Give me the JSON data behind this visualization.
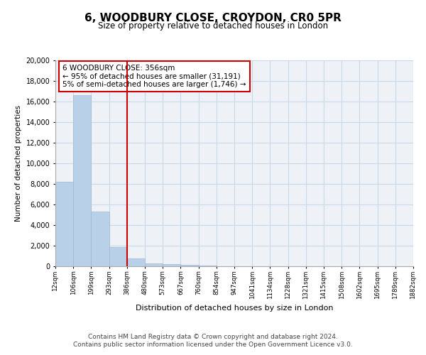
{
  "title": "6, WOODBURY CLOSE, CROYDON, CR0 5PR",
  "subtitle": "Size of property relative to detached houses in London",
  "xlabel": "Distribution of detached houses by size in London",
  "ylabel": "Number of detached properties",
  "bar_values": [
    8200,
    16600,
    5300,
    1850,
    750,
    300,
    200,
    150,
    50,
    0,
    0,
    0,
    0,
    0,
    0,
    0,
    0,
    0,
    0,
    0
  ],
  "bar_labels": [
    "12sqm",
    "106sqm",
    "199sqm",
    "293sqm",
    "386sqm",
    "480sqm",
    "573sqm",
    "667sqm",
    "760sqm",
    "854sqm",
    "947sqm",
    "1041sqm",
    "1134sqm",
    "1228sqm",
    "1321sqm",
    "1415sqm",
    "1508sqm",
    "1602sqm",
    "1695sqm",
    "1789sqm",
    "1882sqm"
  ],
  "bar_color": "#b8d0e8",
  "bar_edge_color": "#a0b8d0",
  "vline_color": "#cc0000",
  "annotation_line1": "6 WOODBURY CLOSE: 356sqm",
  "annotation_line2": "← 95% of detached houses are smaller (31,191)",
  "annotation_line3": "5% of semi-detached houses are larger (1,746) →",
  "annotation_box_facecolor": "white",
  "annotation_box_edgecolor": "#cc0000",
  "ylim": [
    0,
    20000
  ],
  "yticks": [
    0,
    2000,
    4000,
    6000,
    8000,
    10000,
    12000,
    14000,
    16000,
    18000,
    20000
  ],
  "footer_line1": "Contains HM Land Registry data © Crown copyright and database right 2024.",
  "footer_line2": "Contains public sector information licensed under the Open Government Licence v3.0.",
  "bg_color": "#eef2f7",
  "grid_color": "#c8d8e8"
}
